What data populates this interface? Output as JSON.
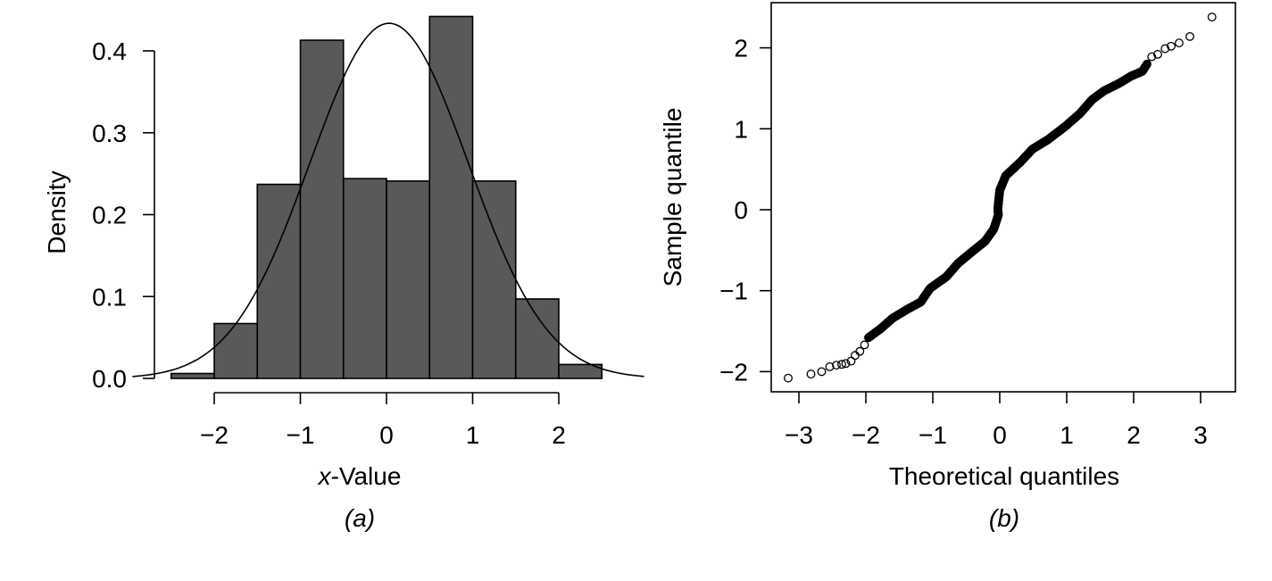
{
  "chart_data": [
    {
      "type": "bar",
      "subtype": "histogram",
      "panel_label": "(a)",
      "xlabel_italic": "x",
      "xlabel_rest": "-Value",
      "ylabel": "Density",
      "bin_edges": [
        -2.5,
        -2.0,
        -1.5,
        -1.0,
        -0.5,
        0.0,
        0.5,
        1.0,
        1.5,
        2.0,
        2.5
      ],
      "values": [
        0.006,
        0.067,
        0.237,
        0.413,
        0.244,
        0.241,
        0.442,
        0.241,
        0.097,
        0.017
      ],
      "bar_color": "#595959",
      "overlay": {
        "type": "normal-density-curve",
        "mean": 0.03,
        "sd": 0.92,
        "x_range": [
          -2.95,
          3.0
        ]
      },
      "xticks": [
        -2,
        -1,
        0,
        1,
        2
      ],
      "xtick_labels": [
        "−2",
        "−1",
        "0",
        "1",
        "2"
      ],
      "yticks": [
        0,
        0.1,
        0.2,
        0.3,
        0.4
      ],
      "ytick_labels": [
        "0.0",
        "0.1",
        "0.2",
        "0.3",
        "0.4"
      ],
      "xlim": [
        -2.8,
        3.0
      ],
      "ylim": [
        0,
        0.44
      ]
    },
    {
      "type": "scatter",
      "subtype": "normal-qq-plot",
      "panel_label": "(b)",
      "xlabel": "Theoretical quantiles",
      "ylabel": "Sample quantile",
      "marker": "open-circle",
      "points": [
        [
          -3.16,
          -2.08
        ],
        [
          -2.82,
          -2.03
        ],
        [
          -2.66,
          -2.0
        ],
        [
          -2.54,
          -1.94
        ],
        [
          -2.44,
          -1.92
        ],
        [
          -2.36,
          -1.91
        ],
        [
          -2.3,
          -1.9
        ],
        [
          -2.22,
          -1.87
        ],
        [
          -2.16,
          -1.8
        ],
        [
          -2.09,
          -1.75
        ],
        [
          -2.02,
          -1.67
        ],
        [
          -1.96,
          -1.58
        ],
        [
          -1.78,
          -1.47
        ],
        [
          -1.6,
          -1.34
        ],
        [
          -1.38,
          -1.23
        ],
        [
          -1.18,
          -1.14
        ],
        [
          -1.04,
          -0.97
        ],
        [
          -0.8,
          -0.83
        ],
        [
          -0.62,
          -0.66
        ],
        [
          -0.4,
          -0.51
        ],
        [
          -0.22,
          -0.39
        ],
        [
          -0.09,
          -0.24
        ],
        [
          -0.02,
          -0.06
        ],
        [
          -0.03,
          0.0
        ],
        [
          0.0,
          0.24
        ],
        [
          0.09,
          0.42
        ],
        [
          0.31,
          0.59
        ],
        [
          0.49,
          0.75
        ],
        [
          0.71,
          0.86
        ],
        [
          0.98,
          1.03
        ],
        [
          1.2,
          1.19
        ],
        [
          1.38,
          1.36
        ],
        [
          1.56,
          1.47
        ],
        [
          1.78,
          1.56
        ],
        [
          1.96,
          1.65
        ],
        [
          2.13,
          1.71
        ],
        [
          2.2,
          1.8
        ],
        [
          2.27,
          1.89
        ],
        [
          2.36,
          1.92
        ],
        [
          2.47,
          1.99
        ],
        [
          2.56,
          2.02
        ],
        [
          2.68,
          2.06
        ],
        [
          2.84,
          2.14
        ],
        [
          3.17,
          2.38
        ]
      ],
      "xticks": [
        -3,
        -2,
        -1,
        0,
        1,
        2,
        3
      ],
      "xtick_labels": [
        "−3",
        "−2",
        "−1",
        "0",
        "1",
        "2",
        "3"
      ],
      "yticks": [
        -2,
        -1,
        0,
        1,
        2
      ],
      "ytick_labels": [
        "−2",
        "−1",
        "0",
        "1",
        "2"
      ],
      "xlim": [
        -3.33,
        3.6
      ],
      "ylim": [
        -2.26,
        2.57
      ],
      "grid": false
    }
  ]
}
